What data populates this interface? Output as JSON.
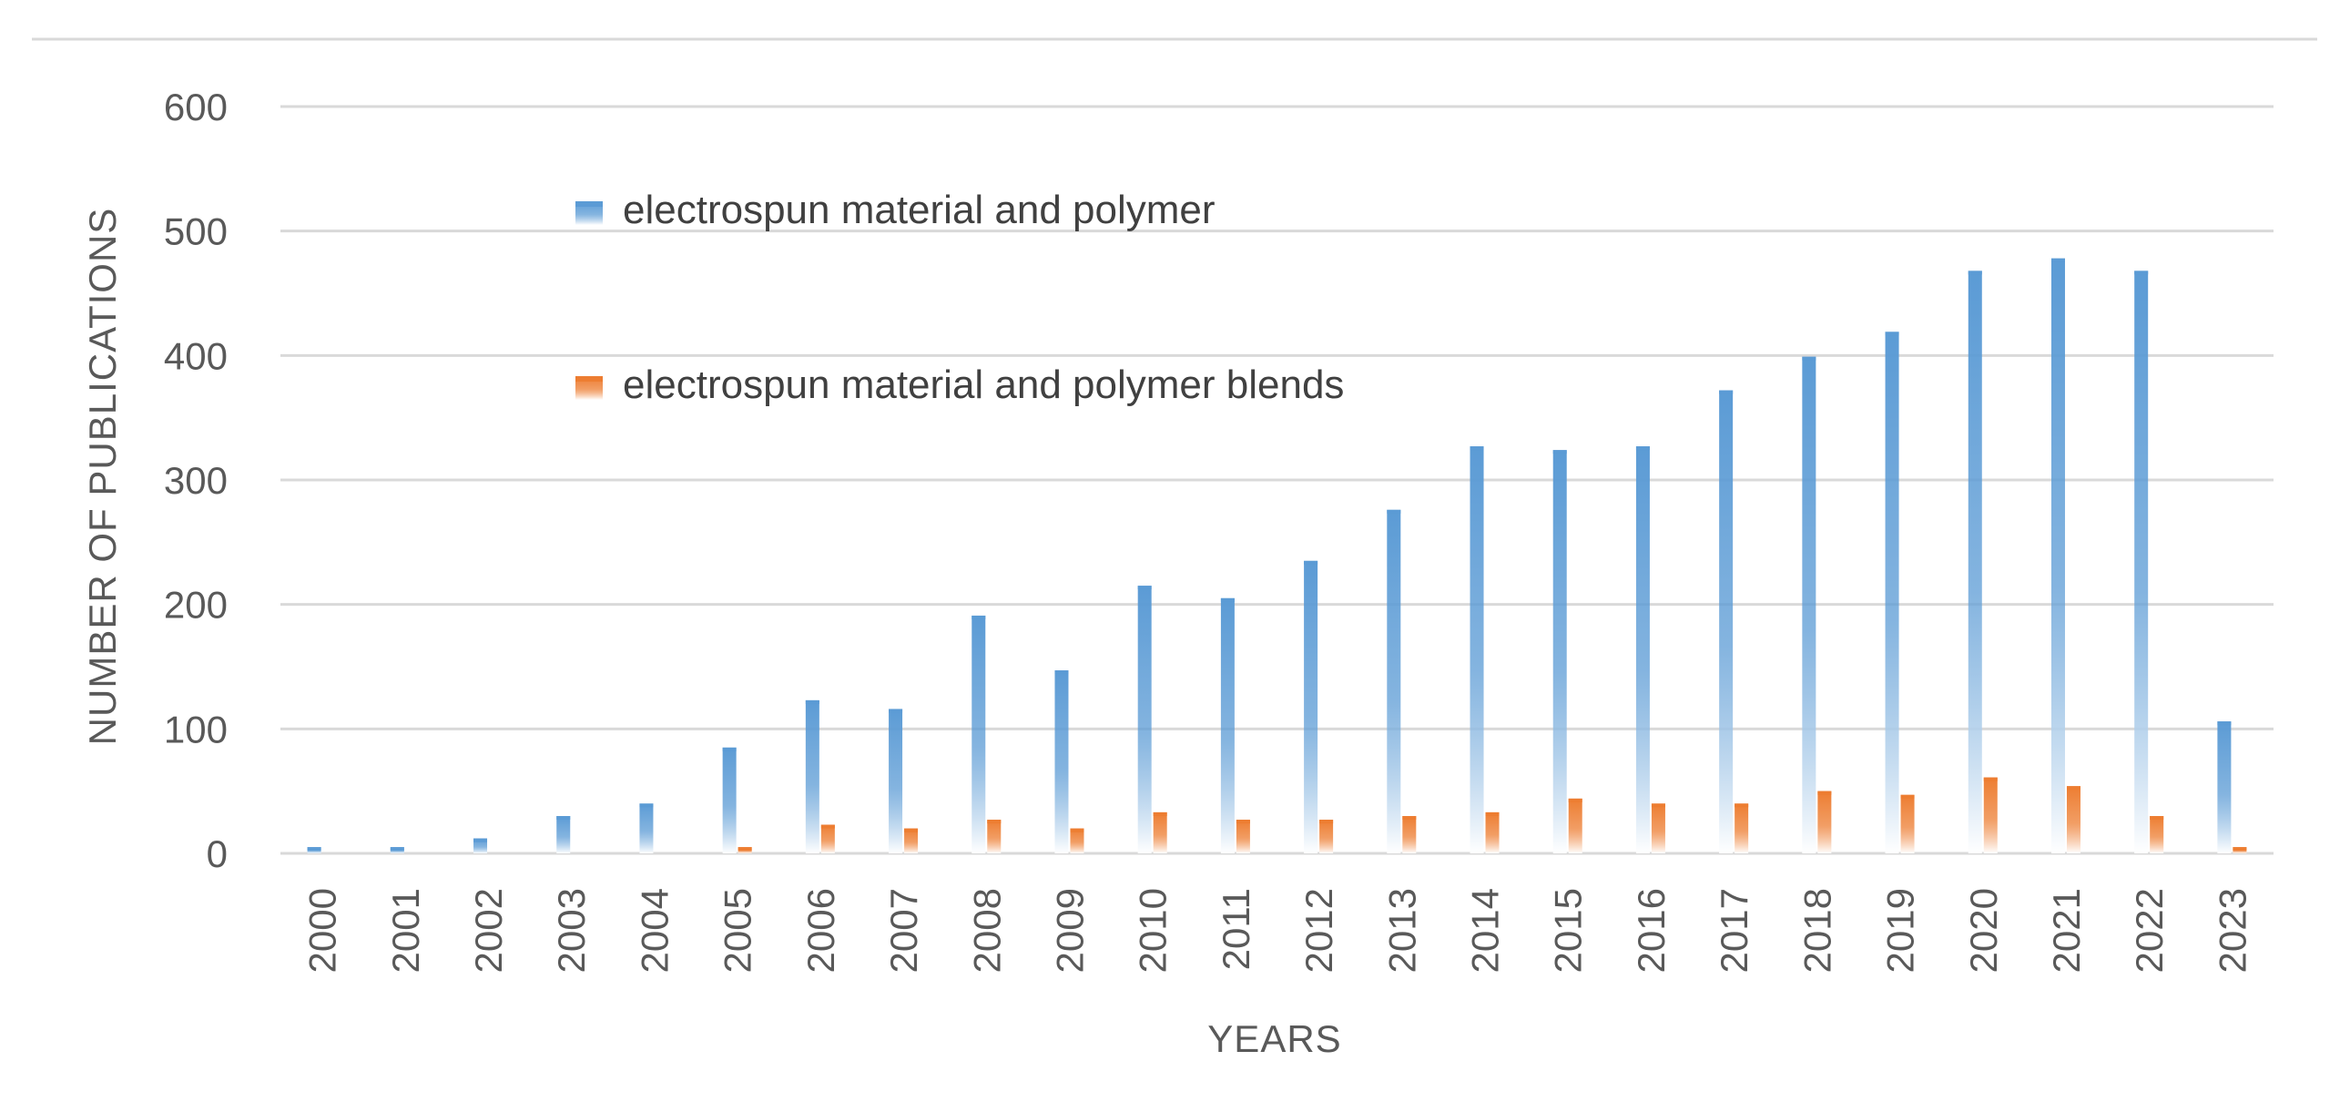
{
  "chart_data": {
    "type": "bar",
    "title": "",
    "xlabel": "YEARS",
    "ylabel": "NUMBER OF PUBLICATIONS",
    "ylim": [
      0,
      600
    ],
    "yticks": [
      "0",
      "100",
      "200",
      "300",
      "400",
      "500",
      "600"
    ],
    "grid": true,
    "legend_position": "top-left-inside",
    "categories": [
      "2000",
      "2001",
      "2002",
      "2003",
      "2004",
      "2005",
      "2006",
      "2007",
      "2008",
      "2009",
      "2010",
      "2011",
      "2012",
      "2013",
      "2014",
      "2015",
      "2016",
      "2017",
      "2018",
      "2019",
      "2020",
      "2021",
      "2022",
      "2023"
    ],
    "series": [
      {
        "name": "electrospun material and polymer",
        "color": "#5b9bd5",
        "values": [
          5,
          5,
          12,
          30,
          40,
          85,
          123,
          116,
          191,
          147,
          215,
          205,
          235,
          276,
          327,
          324,
          327,
          372,
          399,
          419,
          468,
          478,
          468,
          106
        ]
      },
      {
        "name": "electrospun material and polymer blends",
        "color": "#ed7d31",
        "values": [
          0,
          0,
          0,
          0,
          0,
          5,
          23,
          20,
          27,
          20,
          33,
          27,
          27,
          30,
          33,
          44,
          40,
          40,
          50,
          47,
          61,
          54,
          30,
          5
        ]
      }
    ]
  }
}
